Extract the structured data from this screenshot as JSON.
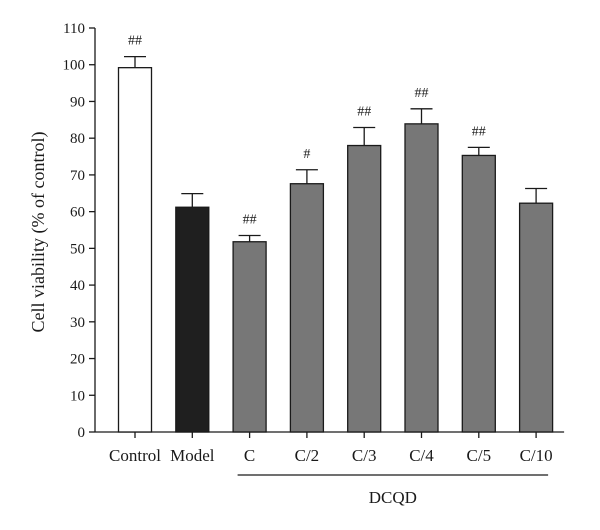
{
  "chart_data": {
    "type": "bar",
    "title": "",
    "xlabel": "",
    "ylabel": "Cell viability (% of control)",
    "ylim": [
      0,
      110
    ],
    "yticks": [
      0,
      10,
      20,
      30,
      40,
      50,
      60,
      70,
      80,
      90,
      100,
      110
    ],
    "grid": false,
    "categories": [
      "Control",
      "Model",
      "C",
      "C/2",
      "C/3",
      "C/4",
      "C/5",
      "C/10"
    ],
    "values": [
      99.2,
      61.2,
      51.8,
      67.6,
      78.0,
      83.9,
      75.3,
      62.3
    ],
    "errors": [
      3.0,
      3.7,
      1.7,
      3.8,
      4.9,
      4.1,
      2.2,
      4.0
    ],
    "significance": [
      "##",
      "",
      "##",
      "#",
      "##",
      "##",
      "##",
      ""
    ],
    "bar_colors": [
      "#ffffff",
      "#1f1f1f",
      "#777777",
      "#777777",
      "#777777",
      "#777777",
      "#777777",
      "#777777"
    ],
    "group_bracket": {
      "label": "DCQD",
      "from_category": "C",
      "to_category": "C/10"
    }
  }
}
